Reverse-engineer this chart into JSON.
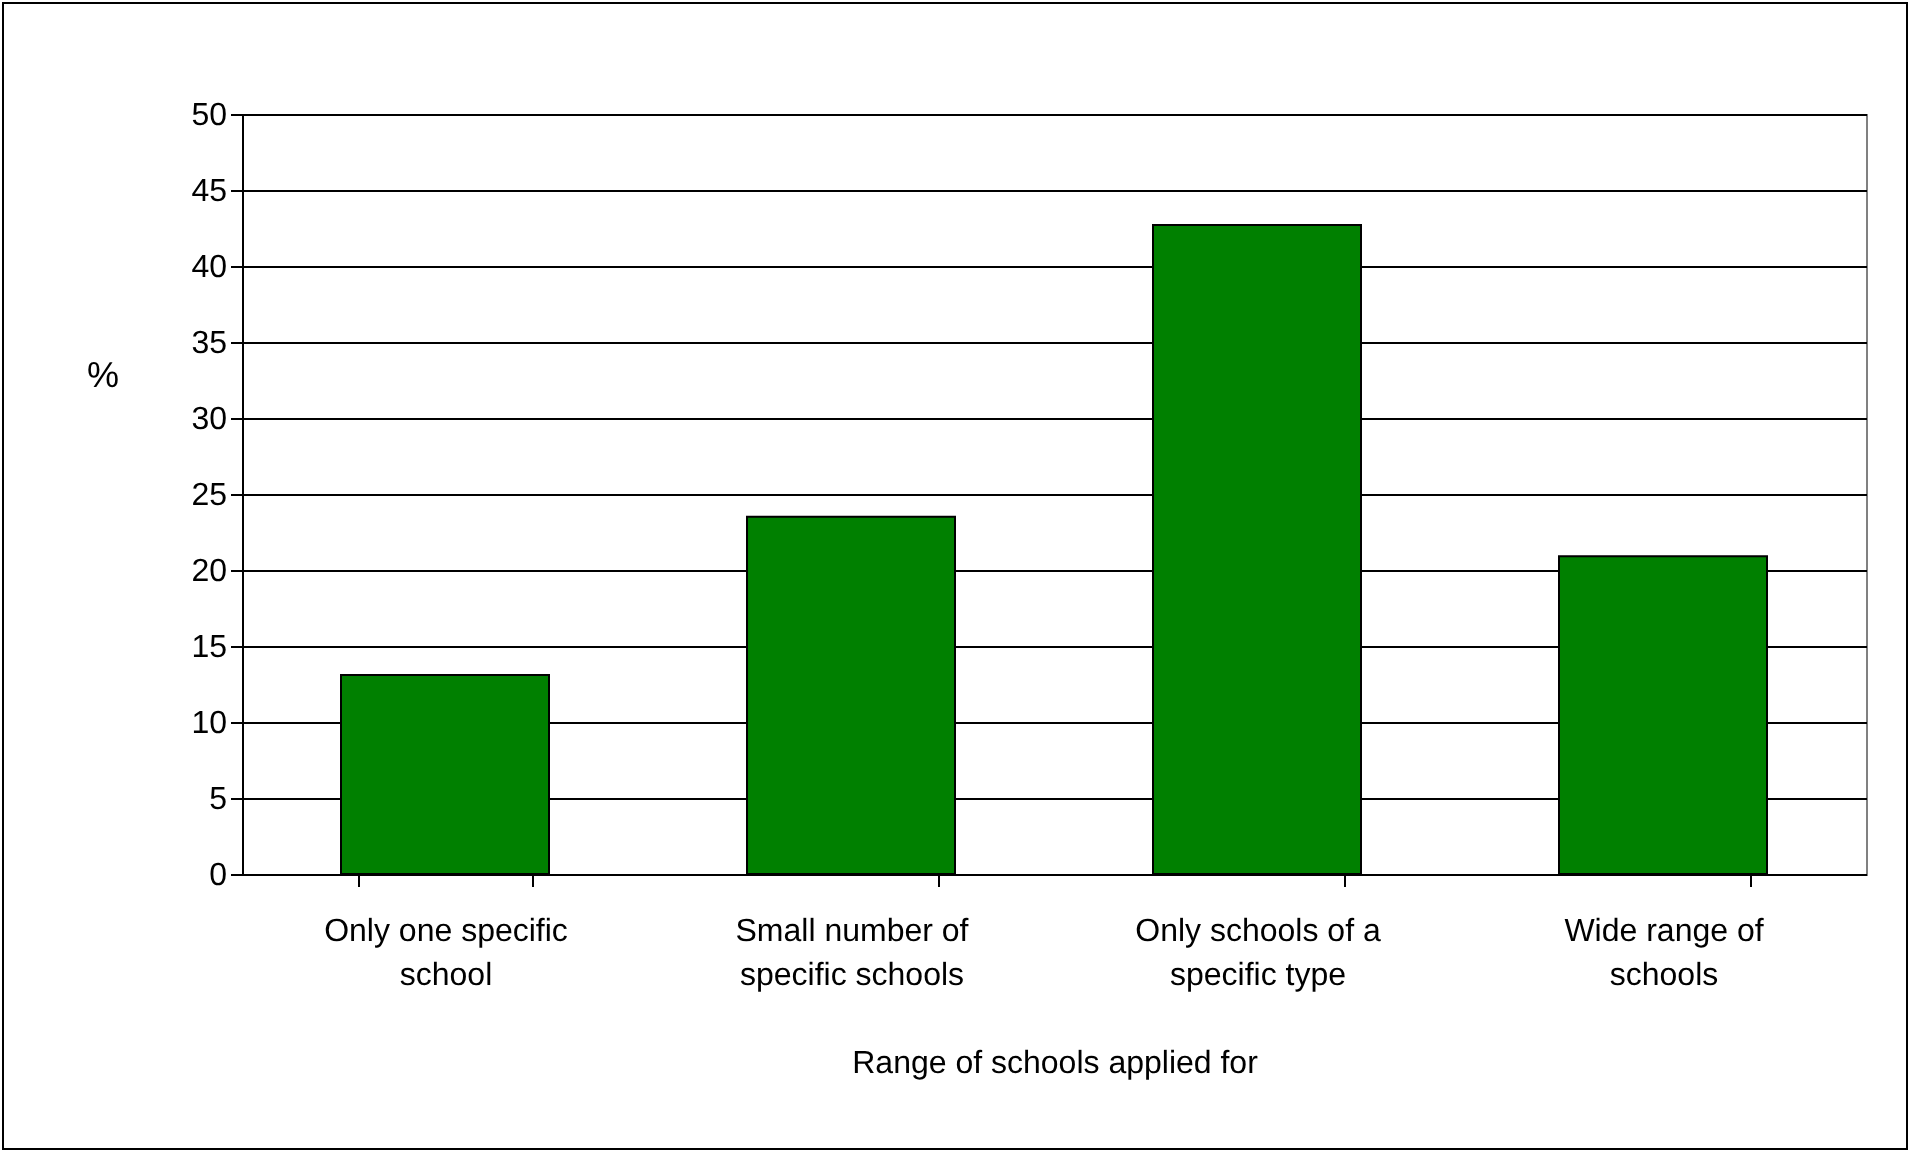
{
  "chart_data": {
    "type": "bar",
    "xlabel": "Range of schools applied for",
    "ylabel": "%",
    "categories": [
      "Only one specific school",
      "Small number of specific schools",
      "Only schools of a specific type",
      "Wide range of schools"
    ],
    "values": [
      13.1,
      23.5,
      42.7,
      20.9
    ],
    "color": "#008000",
    "ylim": [
      0,
      50
    ],
    "yticks": [
      0,
      5,
      10,
      15,
      20,
      25,
      30,
      35,
      40,
      45,
      50
    ],
    "grid": "y"
  }
}
